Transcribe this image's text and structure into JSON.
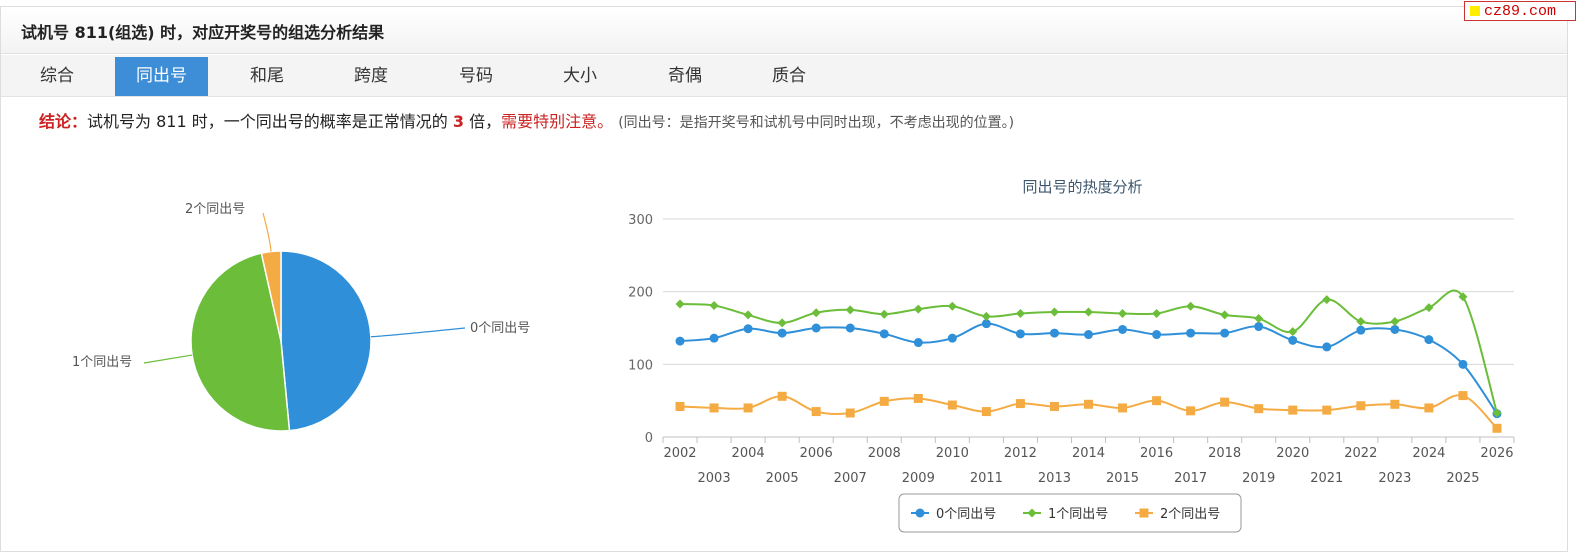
{
  "header": {
    "title": "试机号 811(组选) 时，对应开奖号的组选分析结果",
    "logo_text": "cz89.com"
  },
  "tabs": [
    {
      "label": "综合",
      "active": false
    },
    {
      "label": "同出号",
      "active": true
    },
    {
      "label": "和尾",
      "active": false
    },
    {
      "label": "跨度",
      "active": false
    },
    {
      "label": "号码",
      "active": false
    },
    {
      "label": "大小",
      "active": false
    },
    {
      "label": "奇偶",
      "active": false
    },
    {
      "label": "质合",
      "active": false
    }
  ],
  "conclusion": {
    "label": "结论：",
    "text_1": "试机号为 811 时，一个同出号的概率是正常情况的",
    "multiplier": "3",
    "text_2": "倍，",
    "warning": "需要特别注意。",
    "note": "(同出号：是指开奖号和试机号中同时出现，不考虑出现的位置。)"
  },
  "colors": {
    "accent": "#3d8ed6",
    "series_0": "#2f8fd8",
    "series_1": "#6bbd3a",
    "series_2": "#f5ab44",
    "warning": "#cc2222"
  },
  "chart_data": [
    {
      "type": "pie",
      "labels": [
        "0个同出号",
        "1个同出号",
        "2个同出号"
      ],
      "values": [
        48.5,
        48.0,
        3.5
      ]
    },
    {
      "type": "line",
      "title": "同出号的热度分析",
      "x": [
        2002,
        2003,
        2004,
        2005,
        2006,
        2007,
        2008,
        2009,
        2010,
        2011,
        2012,
        2013,
        2014,
        2015,
        2016,
        2017,
        2018,
        2019,
        2020,
        2021,
        2022,
        2023,
        2024,
        2025,
        2026
      ],
      "ylim": [
        0,
        300
      ],
      "yticks": [
        0,
        100,
        200,
        300
      ],
      "grid": true,
      "legend": "bottom",
      "series": [
        {
          "name": "0个同出号",
          "values": [
            132,
            136,
            149,
            143,
            150,
            150,
            142,
            130,
            136,
            156,
            142,
            143,
            141,
            148,
            141,
            143,
            143,
            152,
            133,
            124,
            147,
            148,
            134,
            100,
            32
          ]
        },
        {
          "name": "1个同出号",
          "values": [
            183,
            181,
            168,
            157,
            171,
            175,
            169,
            176,
            180,
            166,
            170,
            172,
            172,
            170,
            170,
            180,
            168,
            163,
            145,
            189,
            159,
            159,
            178,
            193,
            33
          ]
        },
        {
          "name": "2个同出号",
          "values": [
            42,
            40,
            40,
            56,
            35,
            33,
            49,
            53,
            44,
            35,
            46,
            42,
            45,
            40,
            50,
            36,
            48,
            39,
            37,
            37,
            43,
            45,
            40,
            57,
            12
          ]
        }
      ]
    }
  ]
}
